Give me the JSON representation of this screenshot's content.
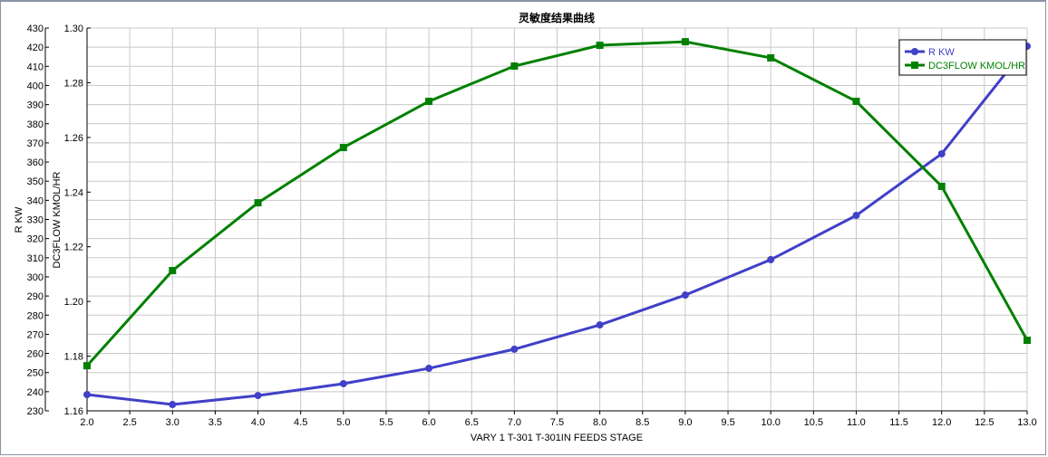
{
  "chart_data": {
    "type": "line",
    "title": "灵敏度结果曲线",
    "xlabel": "VARY   1 T-301 T-301IN FEEDS STAGE",
    "ylabel_left": "R KW",
    "ylabel_right": "DC3FLOW KMOL/HR",
    "xlim": [
      2.0,
      13.0
    ],
    "ylim_left": [
      230,
      430
    ],
    "ylim_second": [
      1.16,
      1.3
    ],
    "grid": true,
    "legend_placement": "top-right",
    "x": [
      2,
      3,
      4,
      5,
      6,
      7,
      8,
      9,
      10,
      11,
      12,
      13
    ],
    "x_ticks": [
      "2.0",
      "2.5",
      "3.0",
      "3.5",
      "4.0",
      "4.5",
      "5.0",
      "5.5",
      "6.0",
      "6.5",
      "7.0",
      "7.5",
      "8.0",
      "8.5",
      "9.0",
      "9.5",
      "10.0",
      "10.5",
      "11.0",
      "11.5",
      "12.0",
      "12.5",
      "13.0"
    ],
    "y_left_ticks": [
      "230",
      "240",
      "250",
      "260",
      "270",
      "280",
      "290",
      "300",
      "310",
      "320",
      "330",
      "340",
      "350",
      "360",
      "370",
      "380",
      "390",
      "400",
      "410",
      "420",
      "430"
    ],
    "y_second_ticks": [
      "1.16",
      "1.18",
      "1.20",
      "1.22",
      "1.24",
      "1.26",
      "1.28",
      "1.30"
    ],
    "series": [
      {
        "name": "R KW",
        "axis": "left",
        "color": "#4040c8",
        "marker": "circle",
        "values": [
          238.5,
          233.3,
          238.0,
          244.2,
          252.2,
          262.2,
          274.9,
          290.5,
          309.0,
          332.1,
          364.3,
          420.5
        ]
      },
      {
        "name": "DC3FLOW KMOL/HR",
        "axis": "second",
        "color": "#008000",
        "marker": "square",
        "values": [
          1.1765,
          1.2113,
          1.2361,
          1.2563,
          1.2732,
          1.2861,
          1.2937,
          1.295,
          1.2891,
          1.2732,
          1.2421,
          1.1858
        ]
      }
    ]
  }
}
